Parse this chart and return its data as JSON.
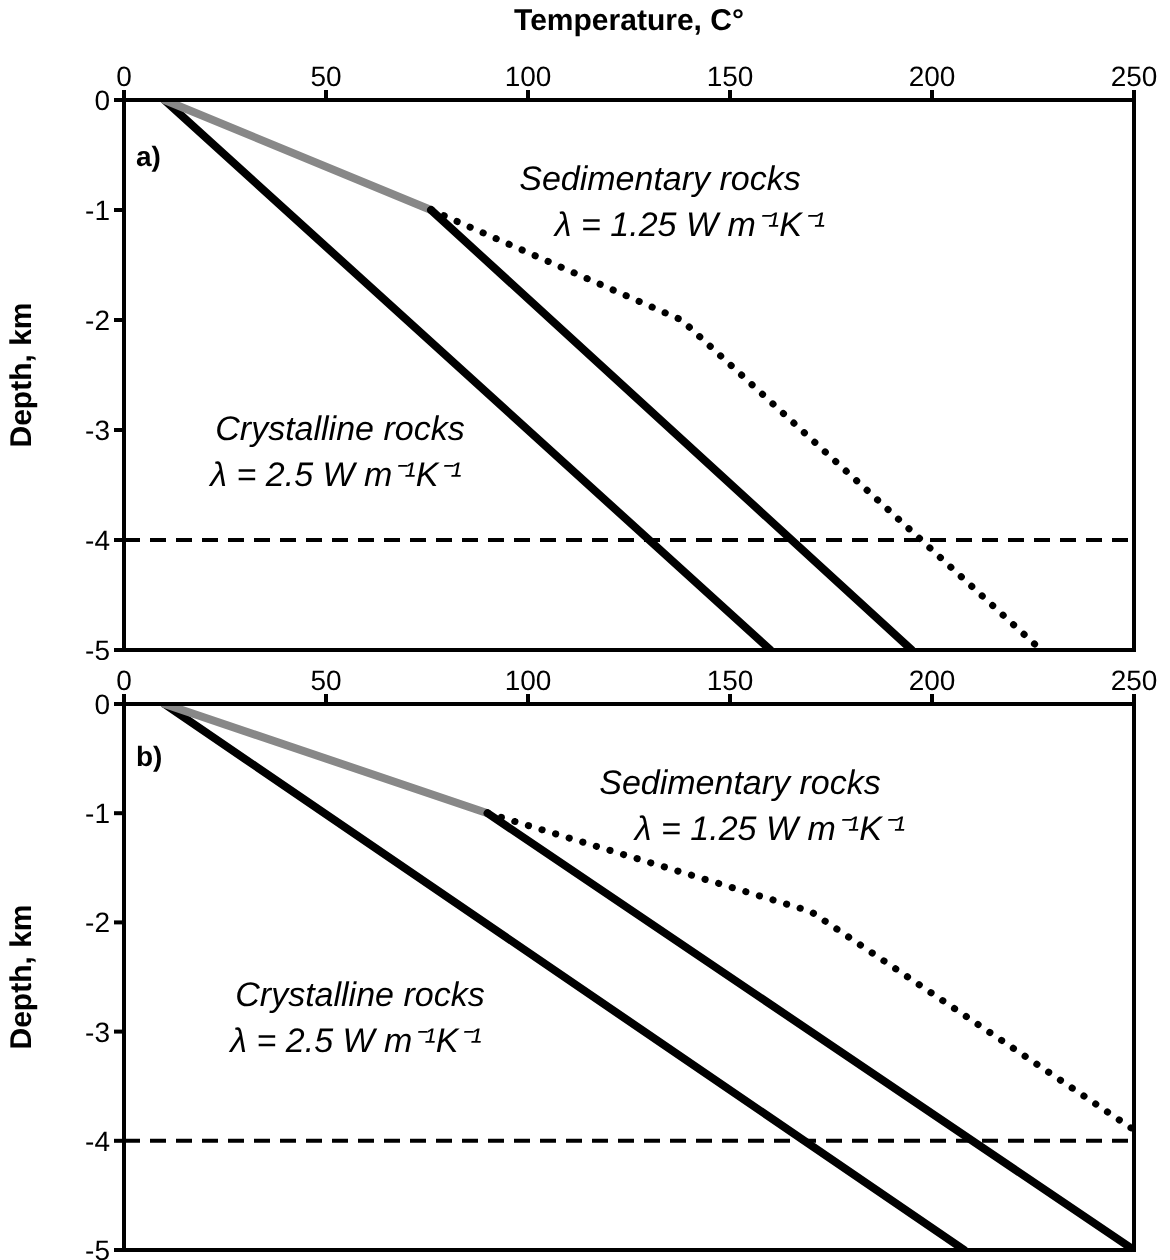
{
  "chart_data": [
    {
      "type": "line",
      "xlabel": "Temperature, C°",
      "ylabel": "Depth, km",
      "xlim": [
        0,
        250
      ],
      "xticks": [
        0,
        50,
        100,
        150,
        200,
        250
      ],
      "ylim": [
        -5,
        0
      ],
      "yticks": [
        0,
        -1,
        -2,
        -3,
        -4,
        -5
      ],
      "series": [
        {
          "color": "#000000",
          "line_style": "solid",
          "x": [
            10,
            160
          ],
          "values": [
            0,
            -5
          ]
        },
        {
          "color": "#888888",
          "line_style": "solid",
          "x": [
            10,
            76
          ],
          "values": [
            0,
            -1
          ]
        },
        {
          "color": "#000000",
          "line_style": "solid",
          "x": [
            76,
            195
          ],
          "values": [
            -1,
            -5
          ]
        },
        {
          "color": "#000000",
          "line_style": "dotted",
          "x": [
            76,
            138,
            227
          ],
          "values": [
            -1,
            -2,
            -5
          ]
        }
      ],
      "ref_lines": [
        {
          "axis": "y",
          "value": -4,
          "color": "#000000",
          "line_style": "dashed"
        }
      ],
      "annotations": [
        "a)",
        "Sedimentary rocks",
        "λ = 1.25 W m⁻¹K⁻¹",
        "Crystalline rocks",
        "λ = 2.5 W m⁻¹K⁻¹"
      ]
    },
    {
      "type": "line",
      "ylabel": "Depth, km",
      "xlim": [
        0,
        250
      ],
      "xticks": [
        0,
        50,
        100,
        150,
        200,
        250
      ],
      "ylim": [
        -5,
        0
      ],
      "yticks": [
        0,
        -1,
        -2,
        -3,
        -4,
        -5
      ],
      "series": [
        {
          "color": "#000000",
          "line_style": "solid",
          "x": [
            10,
            208
          ],
          "values": [
            0,
            -5
          ]
        },
        {
          "color": "#888888",
          "line_style": "solid",
          "x": [
            10,
            90
          ],
          "values": [
            0,
            -1
          ]
        },
        {
          "color": "#000000",
          "line_style": "solid",
          "x": [
            90,
            250
          ],
          "values": [
            -1,
            -5
          ]
        },
        {
          "color": "#000000",
          "line_style": "dotted",
          "x": [
            90,
            170,
            250
          ],
          "values": [
            -1,
            -1.9,
            -3.9
          ]
        }
      ],
      "ref_lines": [
        {
          "axis": "y",
          "value": -4,
          "color": "#000000",
          "line_style": "dashed"
        }
      ],
      "annotations": [
        "b)",
        "Sedimentary rocks",
        "λ = 1.25 W m⁻¹K⁻¹",
        "Crystalline rocks",
        "λ = 2.5 W m⁻¹K⁻¹"
      ]
    }
  ]
}
